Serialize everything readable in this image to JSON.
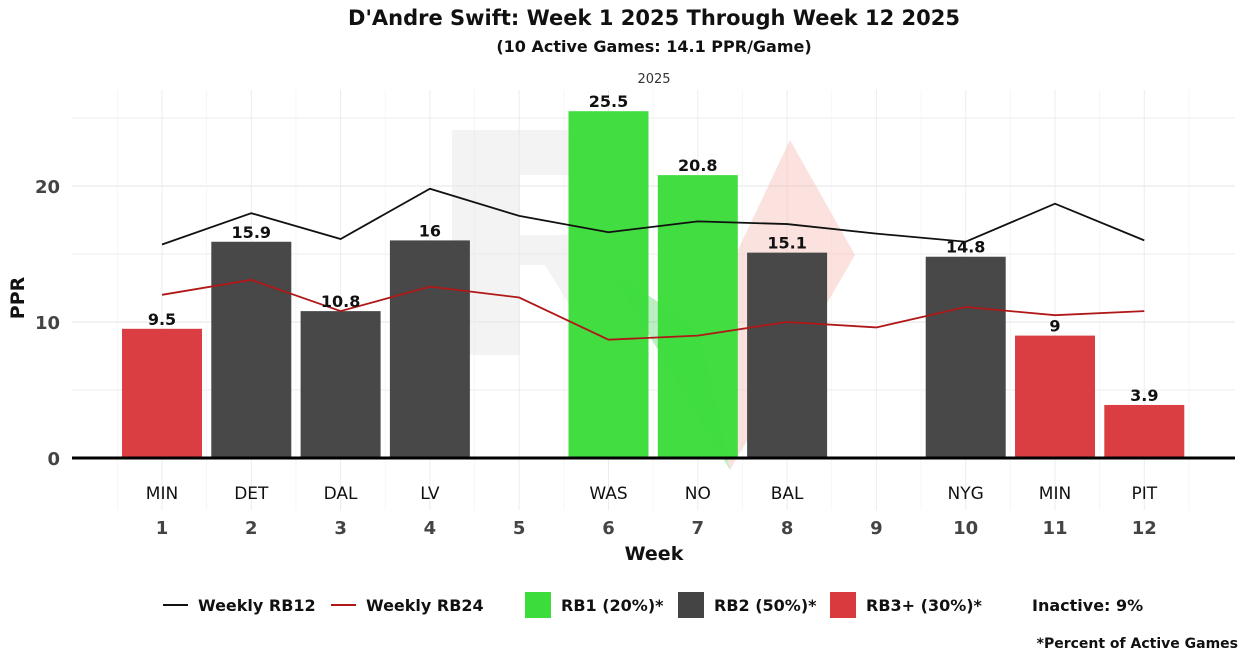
{
  "chart_data": {
    "type": "bar",
    "title": "D'Andre Swift: Week 1 2025 Through Week 12 2025",
    "subtitle": "(10 Active Games: 14.1 PPR/Game)",
    "facet_label": "2025",
    "xlabel": "Week",
    "ylabel": "PPR",
    "ylim": [
      0,
      27
    ],
    "yticks": [
      0,
      10,
      20
    ],
    "weeks": [
      "1",
      "2",
      "3",
      "4",
      "5",
      "6",
      "7",
      "8",
      "9",
      "10",
      "11",
      "12"
    ],
    "opponents": [
      "MIN",
      "DET",
      "DAL",
      "LV",
      "",
      "WAS",
      "NO",
      "BAL",
      "",
      "NYG",
      "MIN",
      "PIT"
    ],
    "values": [
      9.5,
      15.9,
      10.8,
      16,
      null,
      25.5,
      20.8,
      15.1,
      null,
      14.8,
      9,
      3.9
    ],
    "value_labels": [
      "9.5",
      "15.9",
      "10.8",
      "16",
      "",
      "25.5",
      "20.8",
      "15.1",
      "",
      "14.8",
      "9",
      "3.9"
    ],
    "tiers": [
      "RB3+",
      "RB2",
      "RB2",
      "RB2",
      "",
      "RB1",
      "RB1",
      "RB2",
      "",
      "RB2",
      "RB3+",
      "RB3+"
    ],
    "tier_colors": {
      "RB1": "#3ddc3d",
      "RB2": "#444444",
      "RB3+": "#d93a3e"
    },
    "series": [
      {
        "name": "Weekly RB12",
        "color": "#111111",
        "values": [
          15.7,
          18.0,
          16.1,
          19.8,
          17.8,
          16.6,
          17.4,
          17.2,
          16.5,
          15.9,
          18.7,
          16.0
        ]
      },
      {
        "name": "Weekly RB24",
        "color": "#b01818",
        "values": [
          12.0,
          13.1,
          10.8,
          12.6,
          11.8,
          8.7,
          9.0,
          10.0,
          9.6,
          11.1,
          10.5,
          10.8
        ]
      }
    ],
    "legend": {
      "rb12": "Weekly RB12",
      "rb24": "Weekly RB24",
      "rb1": "RB1 (20%)*",
      "rb2": "RB2 (50%)*",
      "rb3": "RB3+ (30%)*",
      "inactive": "Inactive: 9%"
    },
    "footnote": "*Percent of Active Games"
  }
}
